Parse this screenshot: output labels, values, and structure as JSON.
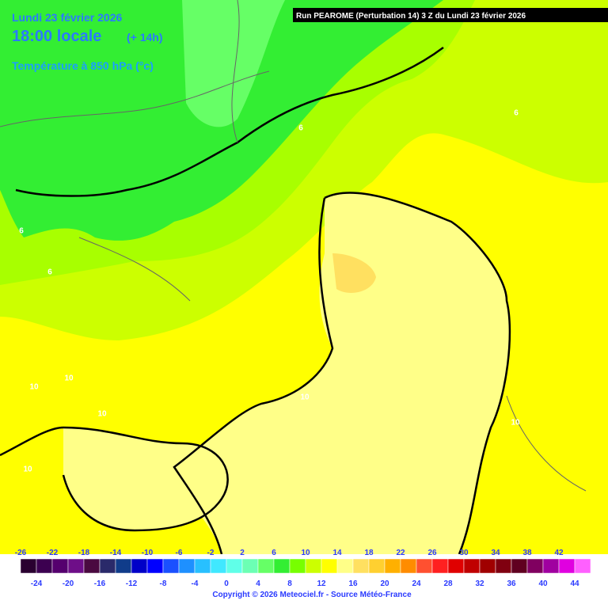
{
  "header": {
    "date": "Lundi 23 février 2026",
    "time": "18:00 locale",
    "lead": "(+ 14h)",
    "field": "Température à 850 hPa (°c)"
  },
  "run": "Run PEAROME (Perturbation 14) 3 Z du Lundi 23 février 2026",
  "contour_labels": [
    {
      "text": "6"
    },
    {
      "text": "6"
    },
    {
      "text": "6"
    },
    {
      "text": "6"
    },
    {
      "text": "10"
    },
    {
      "text": "10"
    },
    {
      "text": "10"
    },
    {
      "text": "10"
    },
    {
      "text": "10"
    },
    {
      "text": "10"
    }
  ],
  "colorbar": {
    "colors": [
      "#2a0030",
      "#3c0050",
      "#55006e",
      "#6e0e88",
      "#4a0a40",
      "#2a2a6a",
      "#103c8a",
      "#0000c8",
      "#0000ff",
      "#1a50ff",
      "#1e90ff",
      "#28c0ff",
      "#40e8ff",
      "#60ffe8",
      "#6cffb4",
      "#66ff66",
      "#33ee33",
      "#77ff00",
      "#ccff00",
      "#ffff00",
      "#ffff88",
      "#ffe060",
      "#ffd030",
      "#ffb000",
      "#ff8c00",
      "#ff5030",
      "#ff2020",
      "#e00000",
      "#c00000",
      "#a00000",
      "#800010",
      "#600020",
      "#800060",
      "#a000a0",
      "#e000e0",
      "#ff60ff"
    ],
    "top_labels": [
      -26,
      -22,
      -18,
      -14,
      -10,
      -6,
      -2,
      2,
      6,
      10,
      14,
      18,
      22,
      26,
      30,
      34,
      38,
      42
    ],
    "bottom_labels": [
      -24,
      -20,
      -16,
      -12,
      -8,
      -4,
      0,
      4,
      8,
      12,
      16,
      20,
      24,
      28,
      32,
      36,
      40,
      44
    ]
  },
  "copyright": "Copyright © 2026 Meteociel.fr - Source Météo-France"
}
